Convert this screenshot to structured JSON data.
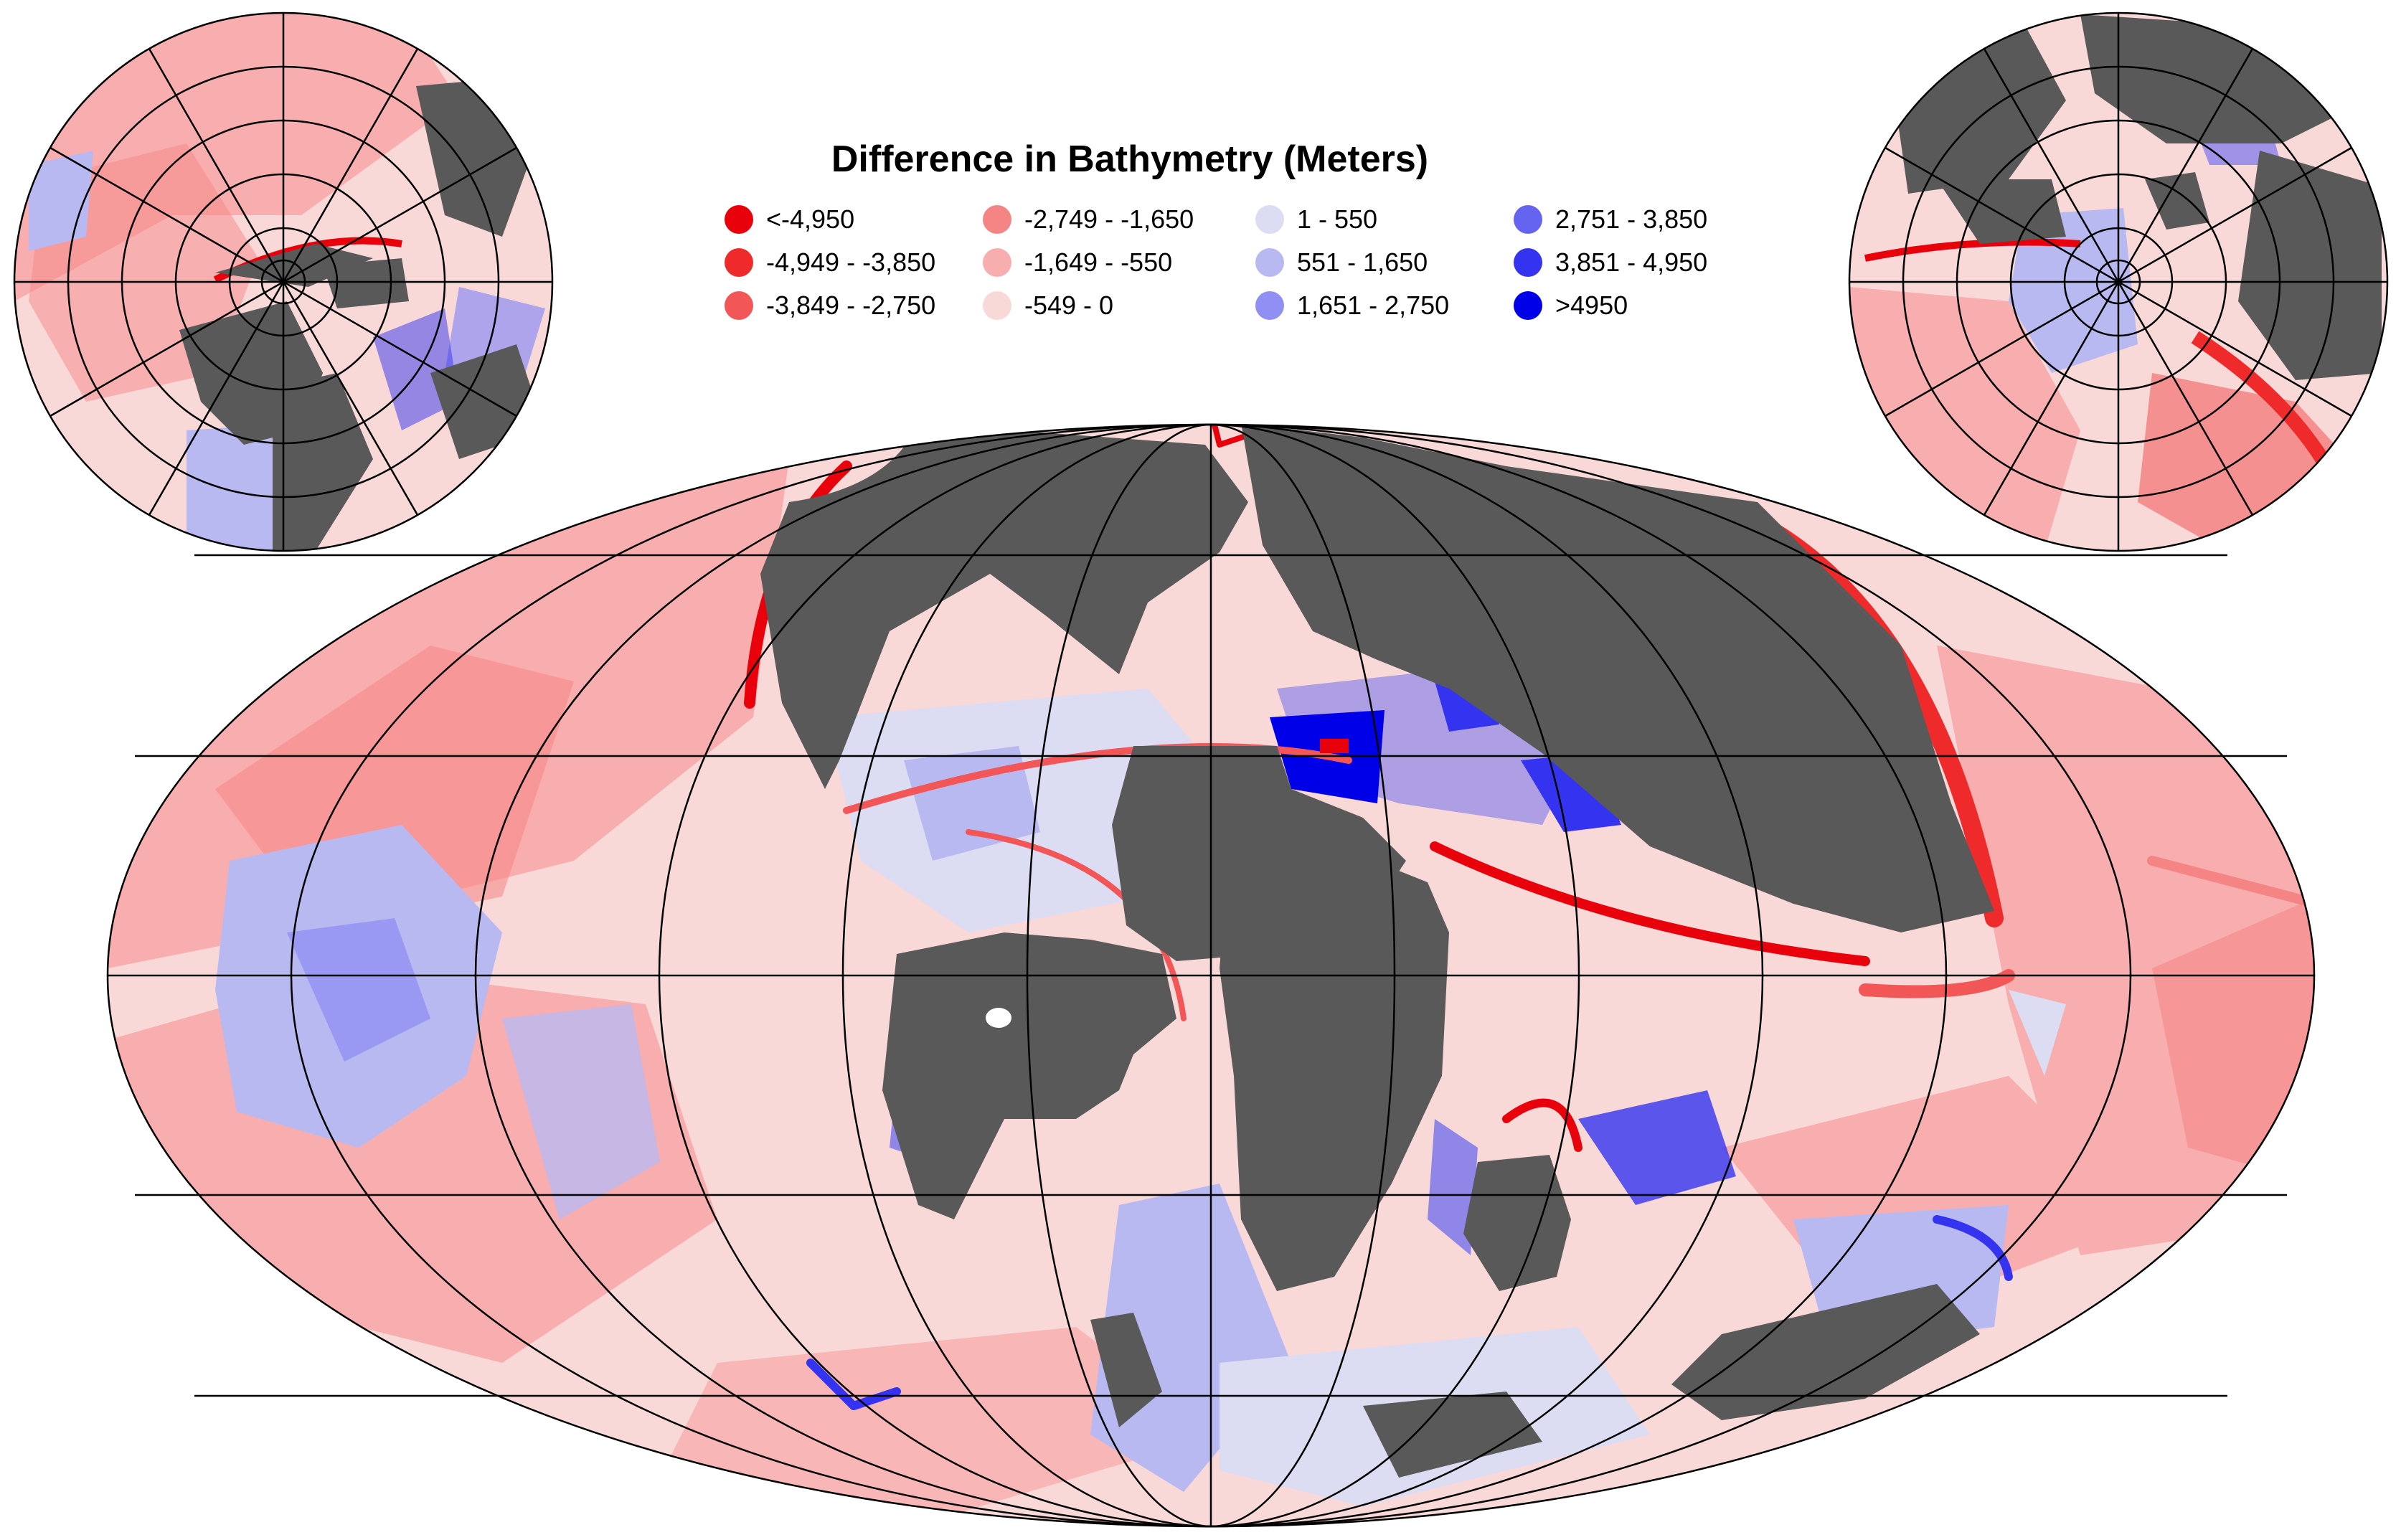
{
  "title": "Difference in Bathymetry (Meters)",
  "legend": [
    {
      "label": "<-4,950",
      "color": "#e8000b"
    },
    {
      "label": "-4,949 - -3,850",
      "color": "#ee2a2a"
    },
    {
      "label": "-3,849 - -2,750",
      "color": "#f25656"
    },
    {
      "label": "-2,749 - -1,650",
      "color": "#f58585"
    },
    {
      "label": "-1,649 - -550",
      "color": "#f8aeae"
    },
    {
      "label": "-549 - 0",
      "color": "#f9d8d8"
    },
    {
      "label": "1 - 550",
      "color": "#dcdcf2"
    },
    {
      "label": "551 - 1,650",
      "color": "#b9b9f2"
    },
    {
      "label": "1,651 - 2,750",
      "color": "#8f8ff4"
    },
    {
      "label": "2,751 - 3,850",
      "color": "#6464f0"
    },
    {
      "label": "3,851 - 4,950",
      "color": "#3434f0"
    },
    {
      "label": ">4950",
      "color": "#0000e8"
    }
  ],
  "land_color": "#595959",
  "graticule_color": "#000000",
  "maps": [
    "north-polar-inset",
    "main-mollweide-map",
    "south-polar-inset"
  ]
}
